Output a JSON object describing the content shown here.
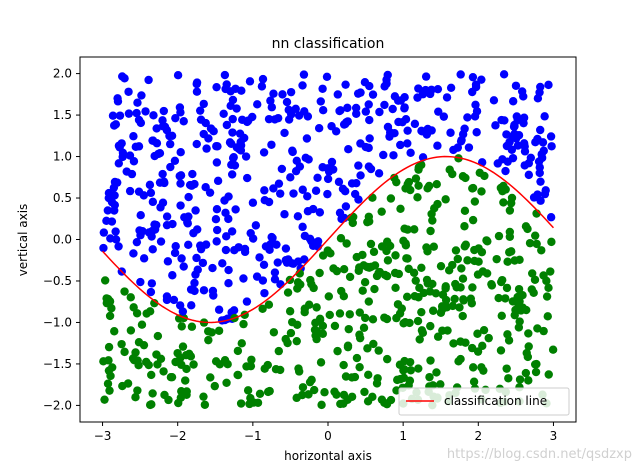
{
  "chart_data": {
    "type": "scatter",
    "title": "nn classification",
    "xlabel": "horizontal axis",
    "ylabel": "vertical axis",
    "xlim": [
      -3.3,
      3.3
    ],
    "ylim": [
      -2.2,
      2.2
    ],
    "xticks": [
      -3,
      -2,
      -1,
      0,
      1,
      2,
      3
    ],
    "xtick_labels": [
      "−3",
      "−2",
      "−1",
      "0",
      "1",
      "2",
      "3"
    ],
    "yticks": [
      -2.0,
      -1.5,
      -1.0,
      -0.5,
      0.0,
      0.5,
      1.0,
      1.5,
      2.0
    ],
    "ytick_labels": [
      "−2.0",
      "−1.5",
      "−1.0",
      "−0.5",
      "0.0",
      "0.5",
      "1.0",
      "1.5",
      "2.0"
    ],
    "grid": false,
    "legend_placement": "lower-right",
    "legend": [
      {
        "label": "classification line",
        "color": "#ff0000"
      }
    ],
    "line": {
      "label": "classification line",
      "color": "#ff0000",
      "function": "y = sin(x)",
      "x_range": [
        -3,
        3
      ],
      "samples": 121
    },
    "scatter_series": [
      {
        "class": "above line",
        "color": "#0000ff",
        "rule": "y > sin(x)"
      },
      {
        "class": "below line",
        "color": "#008000",
        "rule": "y <= sin(x)"
      }
    ],
    "point_count": 1000,
    "point_x_range": [
      -3,
      3
    ],
    "point_y_range": [
      -2,
      2
    ]
  },
  "watermark": "https://blog.csdn.net/qsdzxp"
}
